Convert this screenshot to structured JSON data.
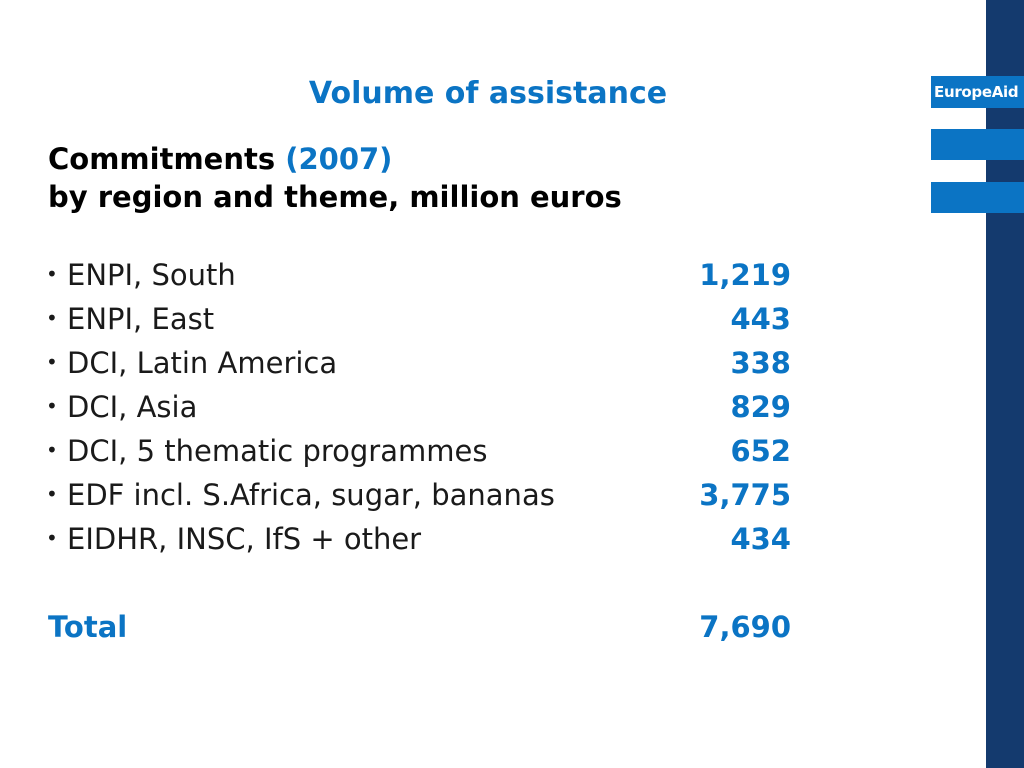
{
  "slide": {
    "title": "Volume of assistance",
    "subtitle_prefix": "Commitments",
    "subtitle_year": "(2007)",
    "subtitle_line2": "by region and theme, million euros"
  },
  "brand": {
    "logo_text": "EuropeAid",
    "accent_color": "#0b74c4",
    "strip_color": "#143a6e"
  },
  "items": [
    {
      "label": "ENPI, South",
      "value": "1,219"
    },
    {
      "label": "ENPI, East",
      "value": "443"
    },
    {
      "label": "DCI, Latin America",
      "value": "338"
    },
    {
      "label": "DCI, Asia",
      "value": "829"
    },
    {
      "label": "DCI, 5 thematic programmes",
      "value": "652"
    },
    {
      "label": "EDF incl. S.Africa, sugar, bananas",
      "value": "3,775"
    },
    {
      "label": "EIDHR, INSC, IfS + other",
      "value": "434"
    }
  ],
  "total": {
    "label": "Total",
    "value": "7,690"
  }
}
